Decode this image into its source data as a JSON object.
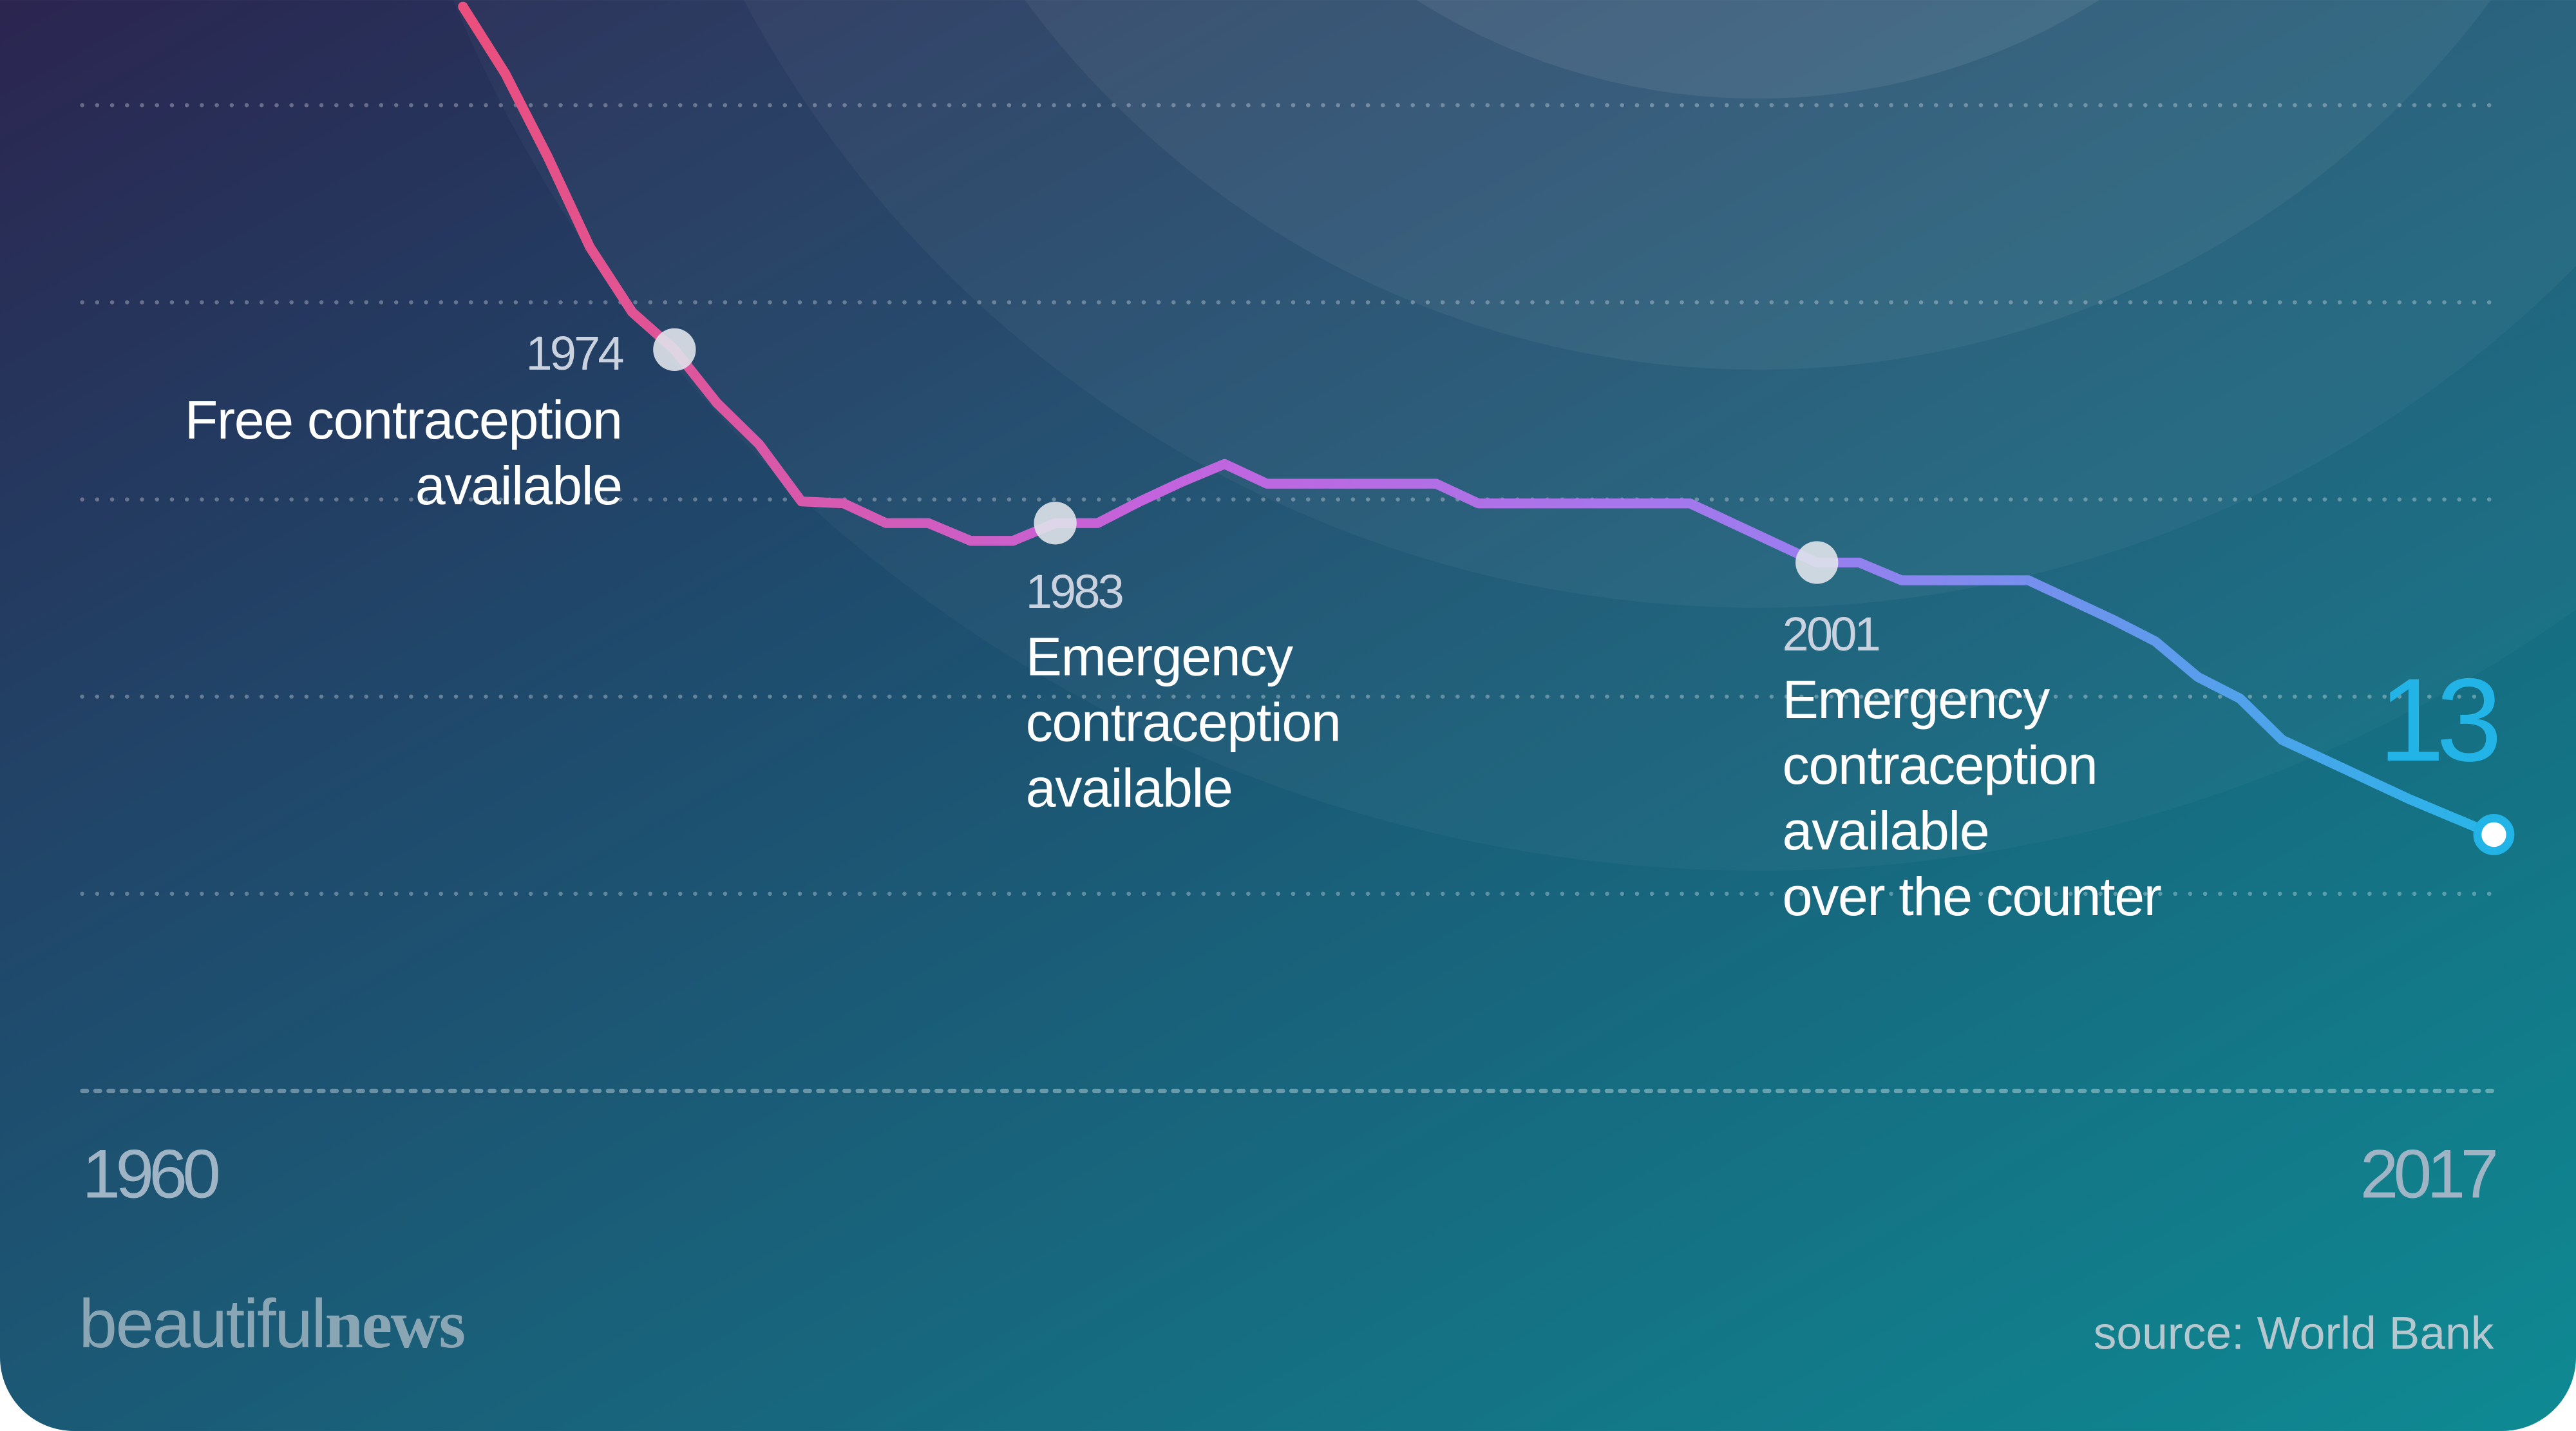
{
  "chart_data": {
    "type": "line",
    "x": [
      1960,
      1961,
      1962,
      1963,
      1964,
      1965,
      1966,
      1967,
      1968,
      1969,
      1970,
      1971,
      1972,
      1973,
      1974,
      1975,
      1976,
      1977,
      1978,
      1979,
      1980,
      1981,
      1982,
      1983,
      1984,
      1985,
      1986,
      1987,
      1988,
      1989,
      1990,
      1991,
      1992,
      1993,
      1994,
      1995,
      1996,
      1997,
      1998,
      1999,
      2000,
      2001,
      2002,
      2003,
      2004,
      2005,
      2006,
      2007,
      2008,
      2009,
      2010,
      2011,
      2012,
      2013,
      2014,
      2015,
      2016,
      2017
    ],
    "values": [
      null,
      null,
      null,
      null,
      null,
      null,
      null,
      null,
      null,
      55,
      51.6,
      47.4,
      42.8,
      39.5,
      37.6,
      34.9,
      32.8,
      29.9,
      29.8,
      28.8,
      28.8,
      27.9,
      27.9,
      28.8,
      28.8,
      29.9,
      30.9,
      31.8,
      30.8,
      30.8,
      30.8,
      30.8,
      30.8,
      29.8,
      29.8,
      29.8,
      29.8,
      29.8,
      29.8,
      28.8,
      27.8,
      26.8,
      26.8,
      25.9,
      25.9,
      25.9,
      25.9,
      24.9,
      23.9,
      22.8,
      21,
      19.9,
      17.8,
      16.8,
      15.8,
      14.8,
      13.9,
      13
    ],
    "color_stops": [
      "#ea4f7d",
      "#c463dd",
      "#9a7ef0",
      "#27b6e8"
    ],
    "end_label_color": "#22b4e6",
    "xlim": [
      1960,
      2017
    ],
    "xticks": [
      1960,
      2017
    ],
    "ylim": [
      0,
      55
    ],
    "yticks": [
      0,
      10,
      20,
      30,
      40,
      50
    ],
    "grid": true,
    "annotations": [
      {
        "x": 1974,
        "lines": [
          "Free contraception",
          "available"
        ]
      },
      {
        "x": 1983,
        "lines": [
          "Emergency",
          "contraception",
          "available"
        ]
      },
      {
        "x": 2001,
        "lines": [
          "Emergency",
          "contraception",
          "available",
          "over the counter"
        ]
      }
    ],
    "logo": {
      "light": "beautiful",
      "bold": "news"
    },
    "source": "source: World Bank"
  }
}
